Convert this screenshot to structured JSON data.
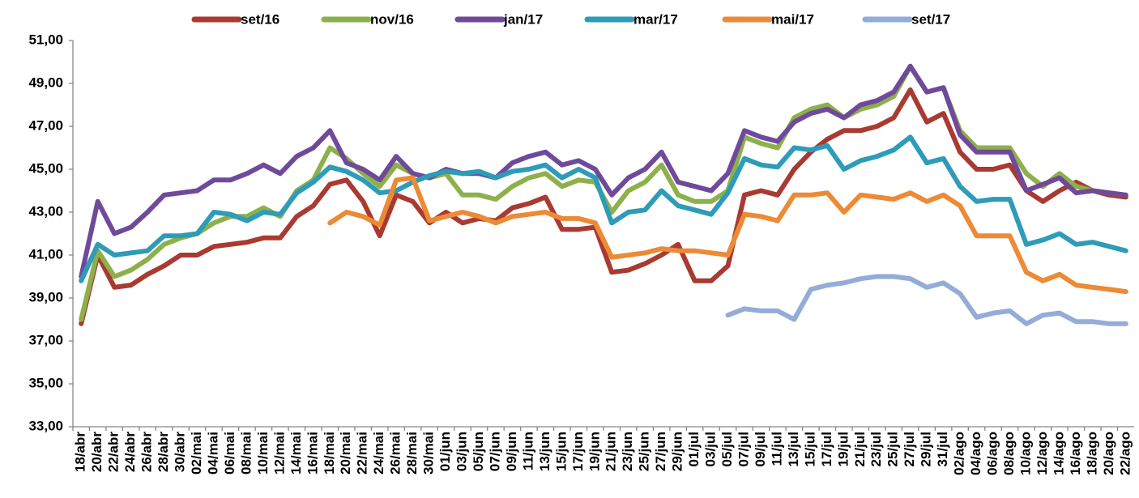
{
  "chart_data": {
    "type": "line",
    "categories": [
      "18/abr",
      "20/abr",
      "22/abr",
      "24/abr",
      "26/abr",
      "28/abr",
      "30/abr",
      "02/mai",
      "04/mai",
      "06/mai",
      "08/mai",
      "10/mai",
      "12/mai",
      "14/mai",
      "16/mai",
      "18/mai",
      "20/mai",
      "22/mai",
      "24/mai",
      "26/mai",
      "28/mai",
      "30/mai",
      "01/jun",
      "03/jun",
      "05/jun",
      "07/jun",
      "09/jun",
      "11/jun",
      "13/jun",
      "15/jun",
      "17/jun",
      "19/jun",
      "21/jun",
      "23/jun",
      "25/jun",
      "27/jun",
      "29/jun",
      "01/jul",
      "03/jul",
      "05/jul",
      "07/jul",
      "09/jul",
      "11/jul",
      "13/jul",
      "15/jul",
      "17/jul",
      "19/jul",
      "21/jul",
      "23/jul",
      "25/jul",
      "27/jul",
      "29/jul",
      "31/jul",
      "02/ago",
      "04/ago",
      "06/ago",
      "08/ago",
      "10/ago",
      "12/ago",
      "14/ago",
      "16/ago",
      "18/ago",
      "20/ago",
      "22/ago"
    ],
    "series": [
      {
        "name": "set/16",
        "color": "#a93a32",
        "values": [
          37.8,
          41.0,
          39.5,
          39.6,
          40.1,
          40.5,
          41.0,
          41.0,
          41.4,
          41.5,
          41.6,
          41.8,
          41.8,
          42.8,
          43.3,
          44.3,
          44.5,
          43.5,
          41.9,
          43.8,
          43.5,
          42.5,
          43.0,
          42.5,
          42.7,
          42.6,
          43.2,
          43.4,
          43.7,
          42.2,
          42.2,
          42.3,
          40.2,
          40.3,
          40.6,
          41.0,
          41.5,
          39.8,
          39.8,
          40.5,
          43.8,
          44.0,
          43.8,
          45.0,
          45.8,
          46.4,
          46.8,
          46.8,
          47.0,
          47.4,
          48.7,
          47.2,
          47.6,
          45.8,
          45.0,
          45.0,
          45.2,
          44.0,
          43.5,
          44.0,
          44.4,
          44.0,
          43.8,
          43.7
        ]
      },
      {
        "name": "nov/16",
        "color": "#8db04a",
        "values": [
          38.0,
          41.2,
          40.0,
          40.3,
          40.8,
          41.5,
          41.8,
          42.0,
          42.5,
          42.8,
          42.8,
          43.2,
          42.8,
          44.0,
          44.5,
          46.0,
          45.5,
          44.8,
          44.2,
          45.2,
          44.8,
          44.6,
          44.8,
          43.8,
          43.8,
          43.6,
          44.2,
          44.6,
          44.8,
          44.2,
          44.5,
          44.4,
          43.0,
          44.0,
          44.4,
          45.2,
          43.8,
          43.5,
          43.5,
          44.0,
          46.5,
          46.2,
          46.0,
          47.4,
          47.8,
          48.0,
          47.4,
          47.8,
          48.0,
          48.4,
          49.8,
          48.6,
          48.8,
          46.8,
          46.0,
          46.0,
          46.0,
          44.8,
          44.2,
          44.8,
          44.2,
          44.0,
          43.9,
          43.8
        ]
      },
      {
        "name": "jan/17",
        "color": "#6f4a9a",
        "values": [
          40.0,
          43.5,
          42.0,
          42.3,
          43.0,
          43.8,
          43.9,
          44.0,
          44.5,
          44.5,
          44.8,
          45.2,
          44.8,
          45.6,
          46.0,
          46.8,
          45.3,
          45.0,
          44.5,
          45.6,
          44.8,
          44.6,
          45.0,
          44.8,
          44.8,
          44.6,
          45.3,
          45.6,
          45.8,
          45.2,
          45.4,
          45.0,
          43.8,
          44.6,
          45.0,
          45.8,
          44.4,
          44.2,
          44.0,
          44.8,
          46.8,
          46.5,
          46.3,
          47.2,
          47.6,
          47.8,
          47.4,
          48.0,
          48.2,
          48.6,
          49.8,
          48.6,
          48.8,
          46.6,
          45.8,
          45.8,
          45.8,
          44.0,
          44.3,
          44.6,
          43.9,
          44.0,
          43.9,
          43.8
        ]
      },
      {
        "name": "mar/17",
        "color": "#2e9bb8",
        "values": [
          39.8,
          41.5,
          41.0,
          41.1,
          41.2,
          41.9,
          41.9,
          42.0,
          43.0,
          42.9,
          42.6,
          43.0,
          42.9,
          43.9,
          44.4,
          45.1,
          44.9,
          44.5,
          43.9,
          44.0,
          44.4,
          44.7,
          44.9,
          44.8,
          44.9,
          44.6,
          44.9,
          45.0,
          45.2,
          44.6,
          45.0,
          44.6,
          42.5,
          43.0,
          43.1,
          44.0,
          43.3,
          43.1,
          42.9,
          43.9,
          45.5,
          45.2,
          45.1,
          46.0,
          45.9,
          46.1,
          45.0,
          45.4,
          45.6,
          45.9,
          46.5,
          45.3,
          45.5,
          44.2,
          43.5,
          43.6,
          43.6,
          41.5,
          41.7,
          42.0,
          41.5,
          41.6,
          41.4,
          41.2
        ]
      },
      {
        "name": "mai/17",
        "color": "#ec8a35",
        "values": [
          null,
          null,
          null,
          null,
          null,
          null,
          null,
          null,
          null,
          null,
          null,
          null,
          null,
          null,
          null,
          42.5,
          43.0,
          42.8,
          42.4,
          44.5,
          44.6,
          42.6,
          42.8,
          43.0,
          42.8,
          42.5,
          42.8,
          42.9,
          43.0,
          42.7,
          42.7,
          42.5,
          40.9,
          41.0,
          41.1,
          41.3,
          41.2,
          41.2,
          41.1,
          41.0,
          42.9,
          42.8,
          42.6,
          43.8,
          43.8,
          43.9,
          43.0,
          43.8,
          43.7,
          43.6,
          43.9,
          43.5,
          43.8,
          43.3,
          41.9,
          41.9,
          41.9,
          40.2,
          39.8,
          40.1,
          39.6,
          39.5,
          39.4,
          39.3
        ]
      },
      {
        "name": "set/17",
        "color": "#94acd8",
        "values": [
          null,
          null,
          null,
          null,
          null,
          null,
          null,
          null,
          null,
          null,
          null,
          null,
          null,
          null,
          null,
          null,
          null,
          null,
          null,
          null,
          null,
          null,
          null,
          null,
          null,
          null,
          null,
          null,
          null,
          null,
          null,
          null,
          null,
          null,
          null,
          null,
          null,
          null,
          null,
          38.2,
          38.5,
          38.4,
          38.4,
          38.0,
          39.4,
          39.6,
          39.7,
          39.9,
          40.0,
          40.0,
          39.9,
          39.5,
          39.7,
          39.2,
          38.1,
          38.3,
          38.4,
          37.8,
          38.2,
          38.3,
          37.9,
          37.9,
          37.8,
          37.8
        ]
      }
    ],
    "ylim": [
      33,
      51
    ],
    "yticks": [
      {
        "value": 33,
        "label": "33,00"
      },
      {
        "value": 35,
        "label": "35,00"
      },
      {
        "value": 37,
        "label": "37,00"
      },
      {
        "value": 39,
        "label": "39,00"
      },
      {
        "value": 41,
        "label": "41,00"
      },
      {
        "value": 43,
        "label": "43,00"
      },
      {
        "value": 45,
        "label": "45,00"
      },
      {
        "value": 47,
        "label": "47,00"
      },
      {
        "value": 49,
        "label": "49,00"
      },
      {
        "value": 51,
        "label": "51,00"
      }
    ],
    "grid": false,
    "legend": "top"
  }
}
